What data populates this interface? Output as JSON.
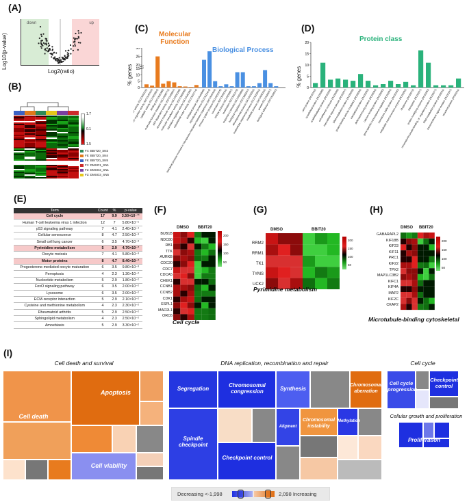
{
  "panels": {
    "a": "(A)",
    "b": "(B)",
    "c": "(C)",
    "d": "(D)",
    "e": "(E)",
    "f": "(F)",
    "g": "(G)",
    "h": "(H)",
    "i": "(I)"
  },
  "volcano": {
    "ylabel": "Log10(p-value)",
    "xlabel": "Log2(ratio)",
    "neg_label": "down",
    "pos_label": "up",
    "colors": {
      "left_zone": "#d8ecd5",
      "right_zone": "#fad6d6",
      "points": "#222222"
    }
  },
  "heatmap_b": {
    "scale": [
      "1.7",
      "0.1",
      "1.5"
    ],
    "legend": [
      {
        "label": "F4: BBIT20_SN3",
        "color": "#2e8b57"
      },
      {
        "label": "F5: BBIT20_SN4",
        "color": "#e07a1b"
      },
      {
        "label": "F6: BBIT20_SN5",
        "color": "#3c62c4"
      },
      {
        "label": "F1: DMSO1_SN1",
        "color": "#cc2b2b"
      },
      {
        "label": "F2: DMSO2_SN1",
        "color": "#7b3fa0"
      },
      {
        "label": "F3: DMSO3_SN5",
        "color": "#e6c619"
      }
    ]
  },
  "chart_data": [
    {
      "type": "bar",
      "title": "Molecular Function / Biological Process",
      "ylabel": "% genes",
      "ylim": [
        0,
        30
      ],
      "axis_break": [
        15,
        20
      ],
      "ticks": [
        "0",
        "5",
        "10",
        "15",
        "20",
        "25",
        "30"
      ],
      "series": [
        {
          "name": "Molecular Function",
          "color": "#e87b1e",
          "categories": [
            "transporter activity (GO:0005215)",
            "transcription regulator activity (GO:0140110)",
            "catalytic activity (GO:0003824)",
            "binding (GO:0005488)",
            "molecular function regulator (GO:0098772)",
            "ATP-dependent activity (GO:0140657)",
            "structural molecule activity (GO:0005198)",
            "molecular transducer activity (GO:0060089)",
            "translation regulator activity (GO:0045182)",
            "cytoskeletal motor activity (GO:0003774)"
          ],
          "values": [
            2.5,
            1.5,
            25,
            3,
            5,
            4,
            1,
            0.8,
            0.5,
            2
          ]
        },
        {
          "name": "Biological Process",
          "color": "#4a90e2",
          "categories": [
            "biological phase (GO:0044848)",
            "reproductive process (GO:0022414)",
            "biological process involved in interspecies interaction between organisms (GO:0044419)",
            "immune system process (GO:0002376)",
            "locomotion (GO:0040011)",
            "cellular process (GO:0009987)",
            "localization (GO:0051179)",
            "response to stimulus (GO:0050896)",
            "biological regulation (GO:0065007)",
            "developmental process (GO:0032502)",
            "multicellular organismal process (GO:0032501)",
            "metabolic process (GO:0008152)",
            "growth (GO:0040007)",
            "biological adhesion (GO:0022610)"
          ],
          "values": [
            23,
            28,
            5,
            1,
            2.5,
            1,
            12,
            12,
            1,
            1,
            3.5,
            17,
            3.5,
            1
          ]
        }
      ],
      "legend": [
        "Molecular Function",
        "Biological Process"
      ]
    },
    {
      "type": "bar",
      "title": "Protein class",
      "ylabel": "% genes",
      "ylim": [
        0,
        20
      ],
      "ticks": [
        "0",
        "5",
        "10",
        "15",
        "20"
      ],
      "color": "#2ab27b",
      "categories": [
        "extracellular matrix protein (PC00102)",
        "cytoskeletal protein (PC00085)",
        "scaffold/adaptor protein (PC00226)",
        "cell adhesion molecule (PC00069)",
        "intercellular signal molecule (PC00207)",
        "DNA metabolism protein (PC00009)",
        "protein-binding activity modulator (PC00095)",
        "translational protein (PC00263)",
        "defense/immunity protein (PC00090)",
        "calcium-binding protein (PC00060)",
        "gene-specific transcriptional regulator (PC00264)",
        "membrane traffic protein (PC00150)",
        "metabolite interconversion enzyme (PC00262)",
        "chaperone (PC00072)",
        "transporter (PC00227)",
        "protein modifying enzyme (PC00260)",
        "chromatin/chromatin-binding, or -regulatory protein (PC00077)",
        "RNA metabolism protein (PC00031)",
        "transmembrane signal receptor (PC00197)",
        "structural protein (PC00211)"
      ],
      "values": [
        2,
        11,
        3.5,
        4,
        3.5,
        3,
        6,
        3,
        1,
        1.5,
        3,
        1.5,
        2.5,
        1,
        16.5,
        11,
        1,
        1,
        1,
        4
      ]
    }
  ],
  "labels_c": {
    "mf": "Molecular",
    "mf2": "Function",
    "bp": "Biological Process",
    "ylabel": "% genes"
  },
  "labels_d": {
    "title": "Protein class",
    "ylabel": "% genes"
  },
  "pathway_table": {
    "headers": [
      "Term",
      "Count",
      "%",
      "p-value"
    ],
    "rows": [
      {
        "term": "Cell cycle",
        "count": "17",
        "pct": "9.9",
        "p": "3.50×10⁻¹¹",
        "hl": true
      },
      {
        "term": "Human T-cell leukemia virus 1 infection",
        "count": "12",
        "pct": "7",
        "p": "5.80×10⁻⁵",
        "hl": false
      },
      {
        "term": "p53 signaling pathway",
        "count": "7",
        "pct": "4.1",
        "p": "2.40×10⁻⁴",
        "hl": false
      },
      {
        "term": "Cellular senescence",
        "count": "8",
        "pct": "4.7",
        "p": "2.50×10⁻³",
        "hl": false
      },
      {
        "term": "Small cell lung cancer",
        "count": "6",
        "pct": "3.5",
        "p": "4.70×10⁻³",
        "hl": false
      },
      {
        "term": "Pyrimidine metabolism",
        "count": "5",
        "pct": "2.9",
        "p": "4.70×10⁻³",
        "hl": true
      },
      {
        "term": "Oocyte meiosis",
        "count": "7",
        "pct": "4.1",
        "p": "5.80×10⁻³",
        "hl": false
      },
      {
        "term": "Motor proteins",
        "count": "8",
        "pct": "4.7",
        "p": "8.40×10⁻³",
        "hl": true
      },
      {
        "term": "Progesterone-mediated oocyte maturation",
        "count": "6",
        "pct": "3.5",
        "p": "9.80×10⁻³",
        "hl": false
      },
      {
        "term": "Ferroptosis",
        "count": "4",
        "pct": "2.3",
        "p": "1.30×10⁻²",
        "hl": false
      },
      {
        "term": "Nucleotide metabolism",
        "count": "5",
        "pct": "2.9",
        "p": "1.80×10⁻²",
        "hl": false
      },
      {
        "term": "FoxO signaling pathway",
        "count": "6",
        "pct": "3.5",
        "p": "2.00×10⁻²",
        "hl": false
      },
      {
        "term": "Lysosome",
        "count": "6",
        "pct": "3.5",
        "p": "2.00×10⁻²",
        "hl": false
      },
      {
        "term": "ECM-receptor interaction",
        "count": "5",
        "pct": "2.9",
        "p": "2.10×10⁻²",
        "hl": false
      },
      {
        "term": "Cysteine and methionine metabolism",
        "count": "4",
        "pct": "2.3",
        "p": "2.30×10⁻²",
        "hl": false
      },
      {
        "term": "Rheumatoid arthritis",
        "count": "5",
        "pct": "2.9",
        "p": "2.50×10⁻²",
        "hl": false
      },
      {
        "term": "Sphingolipid metabolism",
        "count": "4",
        "pct": "2.3",
        "p": "2.50×10⁻²",
        "hl": false
      },
      {
        "term": "Amoebiasis",
        "count": "5",
        "pct": "2.9",
        "p": "3.30×10⁻²",
        "hl": false
      }
    ]
  },
  "heat_f": {
    "dmso": "DMSO",
    "bbit": "BBIT20",
    "caption": "Cell cycle",
    "genes": [
      "BUB1B",
      "NDC80",
      "RB1",
      "TTK",
      "AURKB",
      "CDC20",
      "CDC7",
      "CDCA5",
      "CHEK1",
      "CCNB1",
      "CCNB2",
      "CDK1",
      "ESPL1",
      "MAD2L1",
      "ORC6"
    ],
    "scale": [
      "200",
      "150",
      "100",
      "50"
    ]
  },
  "heat_g": {
    "dmso": "DMSO",
    "bbit": "BBIT20",
    "caption": "Pyrimidine metabolism",
    "genes": [
      "RRM2",
      "RRM1",
      "TK1",
      "TYMS",
      "UCK2"
    ],
    "scale": [
      "200",
      "150",
      "100",
      "50"
    ]
  },
  "heat_h": {
    "dmso": "DMSO",
    "bbit": "BBIT20",
    "caption": "Microtubule-binding cytoskeletal",
    "genes": [
      "GABARAPL2",
      "KIF18B",
      "KIF23",
      "KIF11",
      "PRC1",
      "KIF22",
      "TPX2",
      "MAP1LC3B2",
      "KIFC1",
      "KIF4A",
      "MAP2",
      "KIF2C",
      "CKAP2"
    ],
    "scale": [
      "200",
      "150",
      "100",
      "50"
    ]
  },
  "treemaps": {
    "cell_death": {
      "title": "Cell death and survival",
      "apoptosis": "Apoptosis",
      "death": "Cell death",
      "viability": "Cell viability"
    },
    "dna": {
      "title": "DNA replication, recombination and repair",
      "segregation": "Segregation",
      "congression": "Chromosomal congression",
      "synthesis": "Synthesis",
      "aberration": "Chromosomal aberration",
      "spindle": "Spindle checkpoint",
      "alignment": "Aligment",
      "instability": "Chromosomal instability",
      "methylation": "Methylation",
      "checkpoint": "Checkpoint control"
    },
    "cell_cycle": {
      "title": "Cell cycle",
      "progression": "Cell cycle progression",
      "checkpoint": "Checkpoint control"
    },
    "growth": {
      "title": "Cellular growth and proliferation",
      "proliferation": "Proliferation"
    }
  },
  "legend_i": {
    "decreasing": "Decreasing <-1,998",
    "increasing": "2,098 Increasing"
  }
}
